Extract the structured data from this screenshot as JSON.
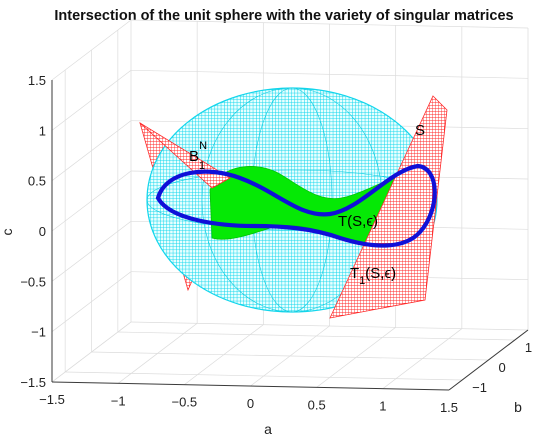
{
  "chart_data": {
    "type": "surface3d",
    "title": "Intersection of the unit sphere with the variety of singular matrices",
    "xlabel": "a",
    "ylabel": "b",
    "zlabel": "c",
    "x_ticks": [
      "−1.5",
      "−1",
      "−0.5",
      "0",
      "0.5",
      "1",
      "1.5"
    ],
    "y_ticks": [
      "−1",
      "0",
      "1"
    ],
    "z_ticks": [
      "−1.5",
      "−1",
      "−0.5",
      "0",
      "0.5",
      "1",
      "1.5"
    ],
    "xlim": [
      -1.5,
      1.5
    ],
    "ylim": [
      -1.5,
      1.5
    ],
    "zlim": [
      -1.5,
      1.5
    ],
    "grid": true,
    "surfaces": [
      {
        "label": "unit sphere",
        "color": "#00e5ee",
        "style": "mesh"
      },
      {
        "label": "S",
        "color": "#ff3030",
        "style": "mesh"
      },
      {
        "label": "T(S,ε)",
        "color": "#00ee00",
        "style": "filled"
      },
      {
        "label": "B₁ᴺ",
        "color": "#1010cc",
        "style": "curve"
      }
    ],
    "annotations": [
      {
        "main": "B",
        "sub": "1",
        "sup": "N"
      },
      {
        "main": "S"
      },
      {
        "main": "T(S,ϵ)"
      },
      {
        "main": "T",
        "sub": "1",
        "rest": "(S,ϵ)"
      }
    ]
  }
}
